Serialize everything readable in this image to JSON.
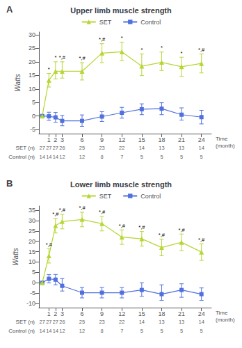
{
  "chart_data": [
    {
      "type": "line",
      "panel_label": "A",
      "title": "Upper limb muscle strength",
      "ylabel": "Watts",
      "xlabel": "Time\n(month)",
      "x": [
        0,
        1,
        2,
        3,
        6,
        9,
        12,
        15,
        18,
        21,
        24
      ],
      "xlim": [
        -0.5,
        25.5
      ],
      "xticks": [
        1,
        2,
        3,
        6,
        9,
        12,
        15,
        18,
        21,
        24
      ],
      "ylim": [
        -6.5,
        31
      ],
      "yticks": [
        -5,
        0,
        5,
        10,
        15,
        20,
        25,
        30
      ],
      "grid": false,
      "legend": "top",
      "series": [
        {
          "name": "Control",
          "marker": "square",
          "values": [
            0,
            -0.1,
            -0.5,
            -1.8,
            -1.8,
            -0.2,
            1.2,
            2.5,
            2.7,
            0.5,
            -0.4
          ],
          "err_lo": [
            0,
            1.5,
            1.8,
            1.8,
            2.0,
            1.8,
            2.0,
            2.0,
            2.2,
            2.0,
            2.5
          ],
          "err_hi": [
            0,
            1.5,
            1.8,
            2.0,
            2.2,
            1.8,
            2.0,
            2.0,
            2.2,
            2.5,
            2.5
          ]
        },
        {
          "name": "SET",
          "marker": "triangle",
          "values": [
            0,
            13.2,
            16.5,
            16.5,
            16.5,
            23.2,
            23.7,
            18.4,
            19.8,
            18.2,
            19.4
          ],
          "err_lo": [
            0,
            2.5,
            2.8,
            2.5,
            3.2,
            3.5,
            3.2,
            3.5,
            3.0,
            3.5,
            3.5
          ],
          "err_hi": [
            0,
            2.5,
            3.5,
            3.5,
            3.2,
            3.5,
            3.5,
            4.5,
            3.8,
            3.5,
            3.5
          ]
        }
      ],
      "annotations": [
        {
          "x": 1,
          "y": 13.2,
          "errhi": 2.5,
          "text": "*"
        },
        {
          "x": 2,
          "y": 16.5,
          "errhi": 3.5,
          "text": "*"
        },
        {
          "x": 3,
          "y": 16.5,
          "errhi": 3.5,
          "text": "*,#"
        },
        {
          "x": 6,
          "y": 16.5,
          "errhi": 3.2,
          "text": "*,#"
        },
        {
          "x": 9,
          "y": 23.2,
          "errhi": 3.5,
          "text": "*,#"
        },
        {
          "x": 12,
          "y": 23.7,
          "errhi": 3.5,
          "text": "*"
        },
        {
          "x": 15,
          "y": 18.4,
          "errhi": 4.5,
          "text": "*"
        },
        {
          "x": 18,
          "y": 19.8,
          "errhi": 3.8,
          "text": "*"
        },
        {
          "x": 21,
          "y": 18.2,
          "errhi": 3.5,
          "text": "*"
        },
        {
          "x": 24,
          "y": 19.4,
          "errhi": 3.5,
          "text": "*,#"
        }
      ],
      "table": [
        {
          "name": "SET (n)",
          "values": [
            27,
            27,
            27,
            26,
            25,
            23,
            22,
            14,
            13,
            13,
            14
          ]
        },
        {
          "name": "Control (n)",
          "values": [
            14,
            14,
            14,
            12,
            12,
            8,
            7,
            5,
            5,
            5,
            5
          ]
        }
      ]
    },
    {
      "type": "line",
      "panel_label": "B",
      "title": "Lower limb muscle strength",
      "ylabel": "Watts",
      "xlabel": "Time\n(month)",
      "x": [
        0,
        1,
        2,
        3,
        6,
        9,
        12,
        15,
        18,
        21,
        24
      ],
      "xlim": [
        -0.5,
        25.5
      ],
      "xticks": [
        1,
        2,
        3,
        6,
        9,
        12,
        15,
        18,
        21,
        24
      ],
      "ylim": [
        -12,
        37
      ],
      "yticks": [
        -10,
        -5,
        0,
        5,
        10,
        15,
        20,
        25,
        30,
        35
      ],
      "grid": false,
      "legend": "top",
      "series": [
        {
          "name": "Control",
          "marker": "square",
          "values": [
            0,
            1.9,
            1.5,
            -1.5,
            -4.8,
            -4.8,
            -4.8,
            -3.5,
            -5.5,
            -3.5,
            -5.5
          ],
          "err_lo": [
            0,
            2.0,
            2.5,
            2.5,
            2.5,
            2.5,
            2.5,
            3.0,
            3.0,
            3.5,
            3.0
          ],
          "err_hi": [
            0,
            2.0,
            2.5,
            3.5,
            2.5,
            2.5,
            2.5,
            3.5,
            4.5,
            3.0,
            3.0
          ]
        },
        {
          "name": "SET",
          "marker": "triangle",
          "values": [
            0,
            13.0,
            27.5,
            29.5,
            30.5,
            28.5,
            22.0,
            21.2,
            17.0,
            19.5,
            14.8
          ],
          "err_lo": [
            0,
            3.5,
            3.5,
            3.5,
            3.5,
            3.5,
            3.5,
            3.5,
            4.0,
            4.0,
            4.0
          ],
          "err_hi": [
            0,
            3.5,
            3.5,
            3.5,
            3.5,
            3.5,
            3.5,
            3.5,
            4.0,
            4.0,
            4.0
          ]
        }
      ],
      "annotations": [
        {
          "x": 1,
          "y": 13.0,
          "errhi": 3.5,
          "text": "*,#"
        },
        {
          "x": 2,
          "y": 27.5,
          "errhi": 3.5,
          "text": "*,#"
        },
        {
          "x": 3,
          "y": 29.5,
          "errhi": 3.5,
          "text": "*,#"
        },
        {
          "x": 6,
          "y": 30.5,
          "errhi": 3.5,
          "text": "*,#"
        },
        {
          "x": 9,
          "y": 28.5,
          "errhi": 3.5,
          "text": "*,#"
        },
        {
          "x": 12,
          "y": 22.0,
          "errhi": 3.5,
          "text": "*,#"
        },
        {
          "x": 15,
          "y": 21.2,
          "errhi": 3.5,
          "text": "*,#"
        },
        {
          "x": 18,
          "y": 17.0,
          "errhi": 4.0,
          "text": "*,#"
        },
        {
          "x": 21,
          "y": 19.5,
          "errhi": 4.0,
          "text": "*,#"
        },
        {
          "x": 24,
          "y": 14.8,
          "errhi": 4.0,
          "text": "*,#"
        }
      ],
      "table": [
        {
          "name": "SET (n)",
          "values": [
            27,
            27,
            27,
            26,
            25,
            23,
            22,
            14,
            13,
            13,
            14
          ]
        },
        {
          "name": "Control (n)",
          "values": [
            14,
            14,
            14,
            12,
            12,
            8,
            7,
            5,
            5,
            5,
            5
          ]
        }
      ]
    }
  ]
}
